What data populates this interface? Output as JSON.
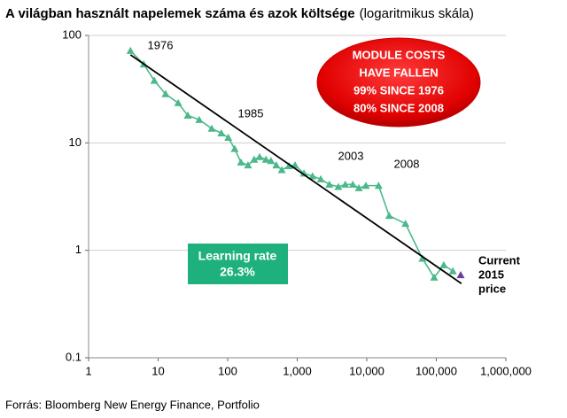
{
  "chart_data": {
    "type": "line",
    "title": "A világban használt napelemek száma és azok költsége",
    "subtitle": "(logaritmikus skála)",
    "source": "Forrás: Bloomberg New Energy Finance, Portfolio",
    "xscale": "log",
    "yscale": "log",
    "grid": true,
    "xlim": [
      1,
      1000000
    ],
    "xticks": [
      1,
      10,
      100,
      {
        "value": 1000,
        "label": "1,000"
      },
      {
        "value": 10000,
        "label": "10,000"
      },
      {
        "value": 100000,
        "label": "100,000"
      },
      {
        "value": 1000000,
        "label": "1,000,000"
      }
    ],
    "ylim": [
      0.1,
      100
    ],
    "yticks": [
      0.1,
      1,
      10,
      100
    ],
    "series": [
      {
        "name": "Module cost",
        "color": "#4cb98a",
        "marker": "triangle",
        "x": [
          4,
          6.2,
          8.8,
          12.8,
          19.4,
          26.7,
          39,
          59,
          81,
          102,
          126,
          155,
          196,
          240,
          288,
          355,
          420,
          500,
          600,
          760,
          930,
          1250,
          1660,
          2180,
          2900,
          3900,
          4900,
          6300,
          7700,
          9700,
          14800,
          21000,
          36000,
          63000,
          93000,
          128000,
          173000
        ],
        "values": [
          72,
          54,
          38,
          28.5,
          23.5,
          18,
          16.4,
          13.6,
          12.3,
          11.2,
          8.8,
          6.6,
          6.2,
          7.0,
          7.4,
          7.0,
          6.8,
          6.2,
          5.6,
          6.1,
          6.2,
          5.2,
          4.9,
          4.6,
          4.1,
          3.9,
          4.1,
          4.1,
          3.8,
          4.0,
          4.0,
          2.1,
          1.77,
          0.84,
          0.56,
          0.73,
          0.64
        ]
      },
      {
        "name": "Learning curve",
        "color": "#000000",
        "marker": "none",
        "x": [
          4,
          230000
        ],
        "values": [
          66,
          0.49
        ]
      },
      {
        "name": "Current 2015 price",
        "color": "#6a3fa0",
        "marker": "triangle",
        "x": [
          224000
        ],
        "values": [
          0.59
        ]
      }
    ],
    "year_labels": [
      "1976",
      "1985",
      "2003",
      "2008"
    ],
    "callout": [
      "MODULE COSTS",
      "HAVE FALLEN",
      "99% SINCE 1976",
      "80% SINCE 2008"
    ],
    "learning_rate": [
      "Learning rate",
      "26.3%"
    ],
    "current_price": [
      "Current",
      "2015",
      "price"
    ]
  }
}
